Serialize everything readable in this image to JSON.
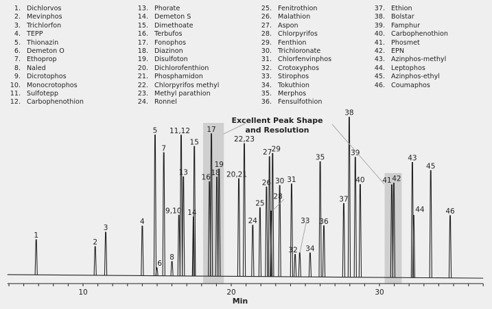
{
  "compounds": [
    {
      "n": "1.",
      "name": "Dichlorvos"
    },
    {
      "n": "2.",
      "name": "Mevinphos"
    },
    {
      "n": "3.",
      "name": "Trichlorfon"
    },
    {
      "n": "4.",
      "name": "TEPP"
    },
    {
      "n": "5.",
      "name": "Thionazin"
    },
    {
      "n": "6.",
      "name": "Demeton O"
    },
    {
      "n": "7.",
      "name": "Ethoprop"
    },
    {
      "n": "8.",
      "name": "Naled"
    },
    {
      "n": "9.",
      "name": "Dicrotophos"
    },
    {
      "n": "10.",
      "name": "Monocrotophos"
    },
    {
      "n": "11.",
      "name": "Sulfotepp"
    },
    {
      "n": "12.",
      "name": "Carbophenothion"
    },
    {
      "n": "13.",
      "name": "Phorate"
    },
    {
      "n": "14.",
      "name": "Demeton S"
    },
    {
      "n": "15.",
      "name": "Dimethoate"
    },
    {
      "n": "16.",
      "name": "Terbufos"
    },
    {
      "n": "17.",
      "name": "Fonophos"
    },
    {
      "n": "18.",
      "name": "Diazinon"
    },
    {
      "n": "19.",
      "name": "Disulfoton"
    },
    {
      "n": "20.",
      "name": "Dichlorofenthion"
    },
    {
      "n": "21.",
      "name": "Phosphamidon"
    },
    {
      "n": "22.",
      "name": "Chlorpyrifos methyl"
    },
    {
      "n": "23.",
      "name": "Methyl parathion"
    },
    {
      "n": "24.",
      "name": "Ronnel"
    },
    {
      "n": "25.",
      "name": "Fenitrothion"
    },
    {
      "n": "26.",
      "name": "Malathion"
    },
    {
      "n": "27.",
      "name": "Aspon"
    },
    {
      "n": "28.",
      "name": "Chlorpyrifos"
    },
    {
      "n": "29.",
      "name": "Fenthion"
    },
    {
      "n": "30.",
      "name": "Trichloronate"
    },
    {
      "n": "31.",
      "name": "Chlorfenvinphos"
    },
    {
      "n": "32.",
      "name": "Crotoxyphos"
    },
    {
      "n": "33.",
      "name": "Stirophos"
    },
    {
      "n": "34.",
      "name": "Tokuthion"
    },
    {
      "n": "35.",
      "name": "Merphos"
    },
    {
      "n": "36.",
      "name": "Fensulfothion"
    },
    {
      "n": "37.",
      "name": "Ethion"
    },
    {
      "n": "38.",
      "name": "Bolstar"
    },
    {
      "n": "39.",
      "name": "Famphur"
    },
    {
      "n": "40.",
      "name": "Carbophenothion"
    },
    {
      "n": "41.",
      "name": "Phosmet"
    },
    {
      "n": "42.",
      "name": "EPN"
    },
    {
      "n": "43.",
      "name": "Azinphos-methyl"
    },
    {
      "n": "44.",
      "name": "Leptophos"
    },
    {
      "n": "45.",
      "name": "Azinphos-ethyl"
    },
    {
      "n": "46.",
      "name": "Coumaphos"
    }
  ],
  "chart_data": {
    "type": "line",
    "subtype": "chromatogram",
    "xlabel": "Min",
    "ylabel": "",
    "xlim": [
      4.9,
      37.0
    ],
    "x_ticks": [
      10,
      20,
      30
    ],
    "y_unit_note": "relative response, tallest peak = 100 (no y-axis printed)",
    "grid": false,
    "annotation": "Excellent Peak Shape and Resolution",
    "highlight_ranges": [
      [
        18.1,
        19.5
      ],
      [
        30.35,
        31.5
      ]
    ],
    "trace_color": "#222222",
    "highlight_color": "#cfcfcf",
    "peaks": [
      {
        "label": "1",
        "rt": 6.84,
        "height": 22
      },
      {
        "label": "2",
        "rt": 10.82,
        "height": 18
      },
      {
        "label": "3",
        "rt": 11.53,
        "height": 27
      },
      {
        "label": "4",
        "rt": 14.0,
        "height": 31
      },
      {
        "label": "5",
        "rt": 14.86,
        "height": 88
      },
      {
        "label": "6",
        "rt": 14.98,
        "height": 5
      },
      {
        "label": "7",
        "rt": 15.45,
        "height": 77
      },
      {
        "label": "8",
        "rt": 16.0,
        "height": 9
      },
      {
        "label": "9,10",
        "rt": 16.47,
        "height": 38
      },
      {
        "label": "11,12",
        "rt": 16.62,
        "height": 88
      },
      {
        "label": "13",
        "rt": 16.77,
        "height": 62
      },
      {
        "label": "14",
        "rt": 17.45,
        "height": 37
      },
      {
        "label": "15",
        "rt": 17.51,
        "height": 81
      },
      {
        "label": "16",
        "rt": 18.53,
        "height": 59
      },
      {
        "label": "17",
        "rt": 18.66,
        "height": 89
      },
      {
        "label": "18",
        "rt": 19.03,
        "height": 62
      },
      {
        "label": "19",
        "rt": 19.18,
        "height": 67
      },
      {
        "label": "20,21",
        "rt": 20.51,
        "height": 61
      },
      {
        "label": "22,23",
        "rt": 20.88,
        "height": 83
      },
      {
        "label": "24",
        "rt": 21.45,
        "height": 32
      },
      {
        "label": "25",
        "rt": 21.94,
        "height": 43
      },
      {
        "label": "26",
        "rt": 22.38,
        "height": 56
      },
      {
        "label": "27",
        "rt": 22.58,
        "height": 75
      },
      {
        "label": "28",
        "rt": 22.69,
        "height": 41
      },
      {
        "label": "29",
        "rt": 22.79,
        "height": 77
      },
      {
        "label": "30",
        "rt": 23.27,
        "height": 57
      },
      {
        "label": "31",
        "rt": 24.07,
        "height": 58
      },
      {
        "label": "32",
        "rt": 24.31,
        "height": 14
      },
      {
        "label": "33",
        "rt": 24.62,
        "height": 15
      },
      {
        "label": "34",
        "rt": 25.32,
        "height": 15
      },
      {
        "label": "35",
        "rt": 26.0,
        "height": 72
      },
      {
        "label": "36",
        "rt": 26.25,
        "height": 32
      },
      {
        "label": "37",
        "rt": 27.59,
        "height": 46
      },
      {
        "label": "38",
        "rt": 27.96,
        "height": 100
      },
      {
        "label": "39",
        "rt": 28.37,
        "height": 75
      },
      {
        "label": "40",
        "rt": 28.7,
        "height": 58
      },
      {
        "label": "41",
        "rt": 30.83,
        "height": 58
      },
      {
        "label": "42",
        "rt": 30.97,
        "height": 59
      },
      {
        "label": "43",
        "rt": 32.22,
        "height": 72
      },
      {
        "label": "44",
        "rt": 32.31,
        "height": 39
      },
      {
        "label": "45",
        "rt": 33.46,
        "height": 67
      },
      {
        "label": "46",
        "rt": 34.77,
        "height": 39
      }
    ]
  }
}
